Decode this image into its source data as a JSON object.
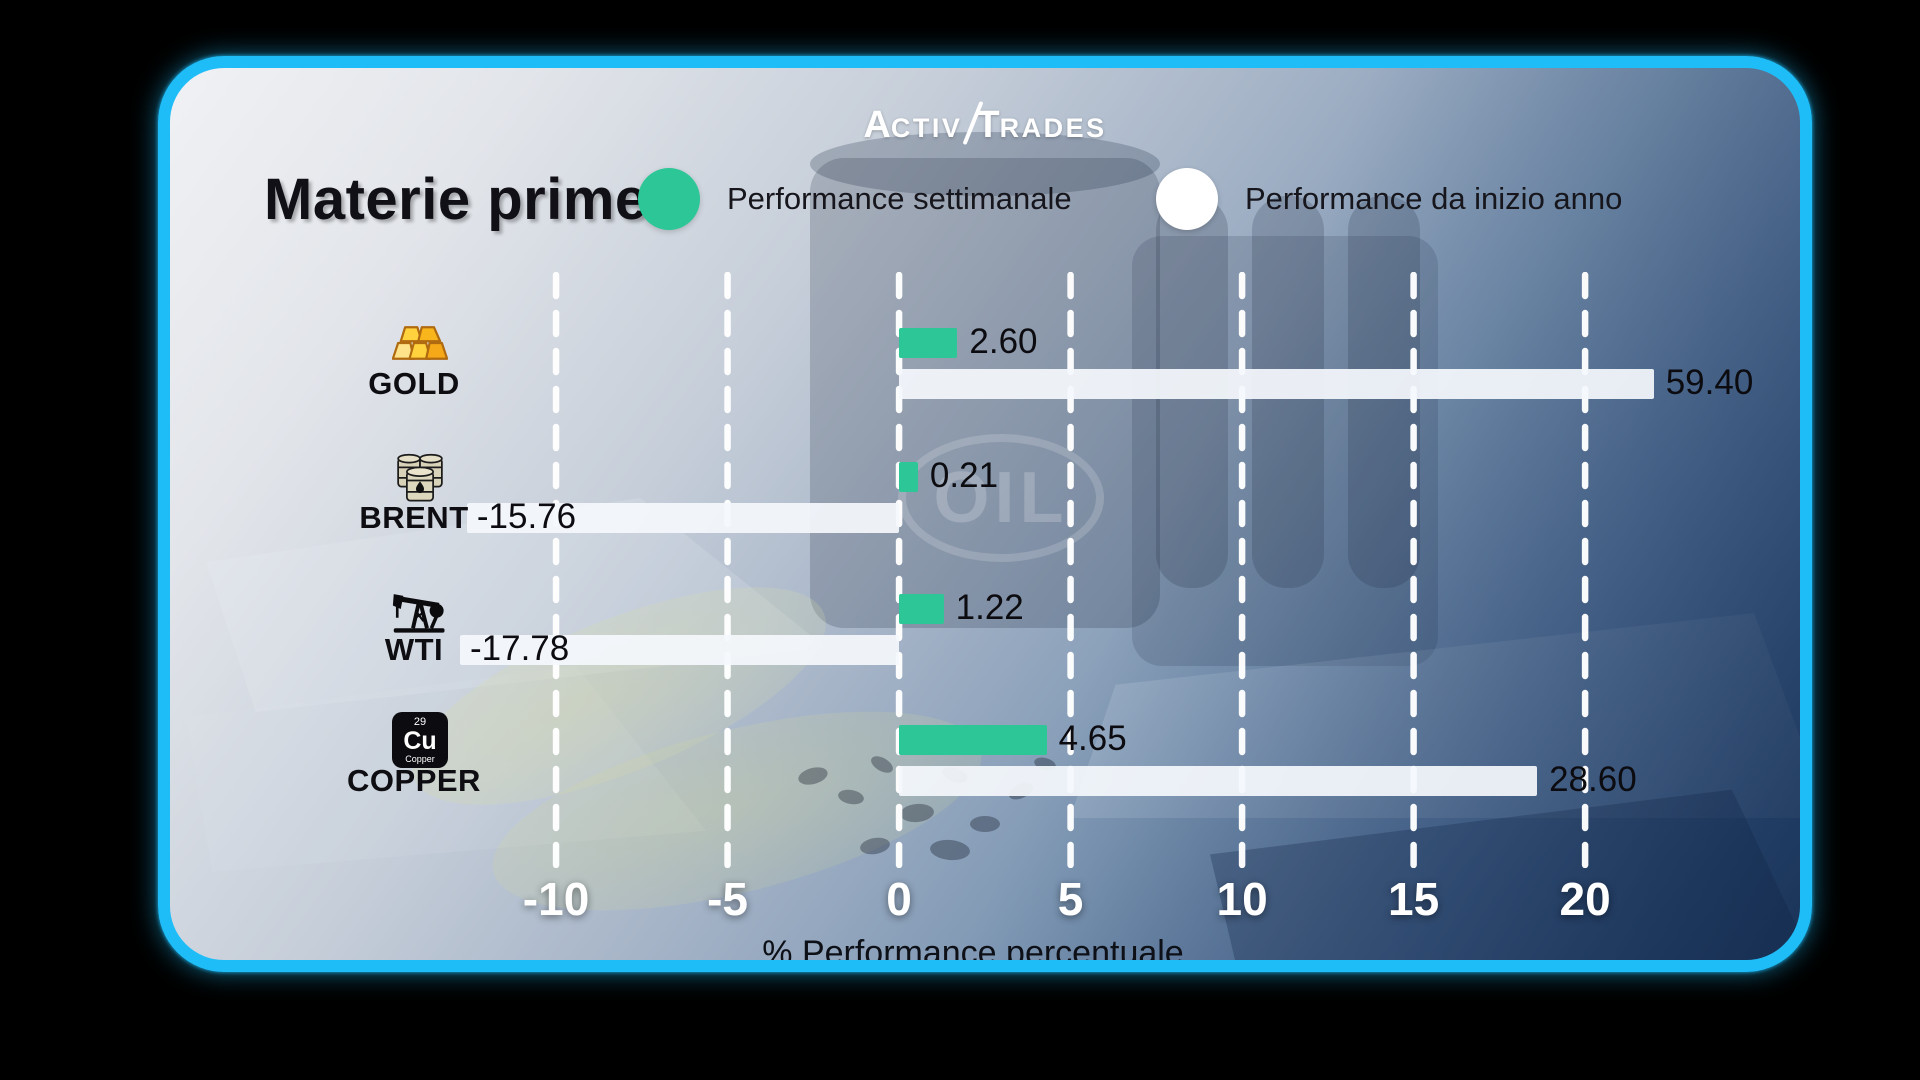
{
  "brand": {
    "logo_part1": "Activ",
    "logo_part2": "Trades"
  },
  "header": {
    "title": "Materie prime"
  },
  "legend": {
    "weekly": {
      "label": "Performance settimanale",
      "color": "#2cc697"
    },
    "ytd": {
      "label": "Performance da inizio anno",
      "color": "#ffffff"
    }
  },
  "background": {
    "watermark": "OIL"
  },
  "chart_data": {
    "type": "bar",
    "orientation": "horizontal",
    "title": "Materie prime",
    "xlabel": "% Performance percentuale",
    "x_ticks": [
      -10,
      -5,
      0,
      5,
      10,
      15,
      20
    ],
    "axis_range": [
      -12.8,
      22.3
    ],
    "grid": "dashed-vertical-white",
    "legend_position": "top",
    "series": [
      {
        "name": "Performance settimanale",
        "key": "weekly",
        "color": "#2cc697"
      },
      {
        "name": "Performance da inizio anno",
        "key": "ytd",
        "color": "#f2f6fa"
      }
    ],
    "categories": [
      "GOLD",
      "BRENT",
      "WTI",
      "COPPER"
    ],
    "rows": [
      {
        "category": "GOLD",
        "icon": "gold-bars-icon",
        "weekly": {
          "value": 2.6,
          "label": "2.60",
          "display_units": 1.7
        },
        "ytd": {
          "value": 59.4,
          "label": "59.40",
          "display_units": 22.0
        }
      },
      {
        "category": "BRENT",
        "icon": "oil-barrels-icon",
        "weekly": {
          "value": 0.21,
          "label": "0.21",
          "display_units": 0.55
        },
        "ytd": {
          "value": -15.76,
          "label": "-15.76",
          "display_units": -12.6
        }
      },
      {
        "category": "WTI",
        "icon": "oil-pumpjack-icon",
        "weekly": {
          "value": 1.22,
          "label": "1.22",
          "display_units": 1.3
        },
        "ytd": {
          "value": -17.78,
          "label": "-17.78",
          "display_units": -12.9
        }
      },
      {
        "category": "COPPER",
        "icon": "copper-element-tile-icon",
        "tile": {
          "number": "29",
          "symbol": "Cu",
          "name": "Copper"
        },
        "weekly": {
          "value": 4.65,
          "label": "4.65",
          "display_units": 4.3
        },
        "ytd": {
          "value": 28.6,
          "label": "28.60",
          "display_units": 18.6
        }
      }
    ]
  }
}
